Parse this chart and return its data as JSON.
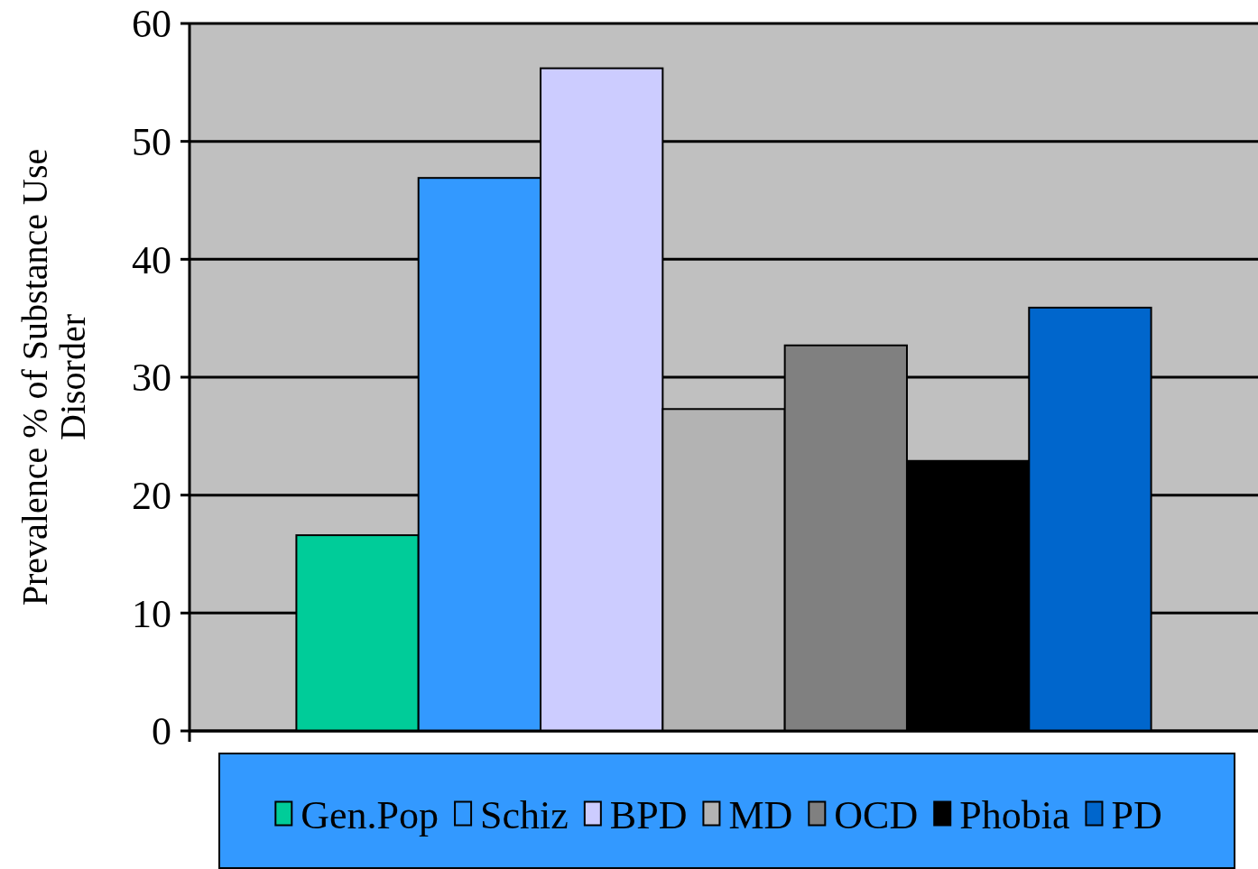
{
  "chart_data": {
    "type": "bar",
    "ylabel": "Prevalence % of Substance Use Disorder",
    "categories": [
      null
    ],
    "series": [
      {
        "name": "Gen.Pop",
        "color": "#00cc99",
        "values": [
          16.6
        ]
      },
      {
        "name": "Schiz",
        "color": "#3399ff",
        "values": [
          46.9
        ]
      },
      {
        "name": "BPD",
        "color": "#ccccff",
        "values": [
          56.2
        ]
      },
      {
        "name": "MD",
        "color": "#b3b3b3",
        "values": [
          27.3
        ]
      },
      {
        "name": "OCD",
        "color": "#808080",
        "values": [
          32.7
        ]
      },
      {
        "name": "Phobia",
        "color": "#000000",
        "values": [
          22.9
        ]
      },
      {
        "name": "PD",
        "color": "#0066cc",
        "values": [
          35.9
        ]
      }
    ],
    "ylim": [
      0,
      60
    ],
    "yticks": [
      0,
      10,
      20,
      30,
      40,
      50,
      60
    ],
    "grid": "y",
    "legend": "bottom"
  }
}
